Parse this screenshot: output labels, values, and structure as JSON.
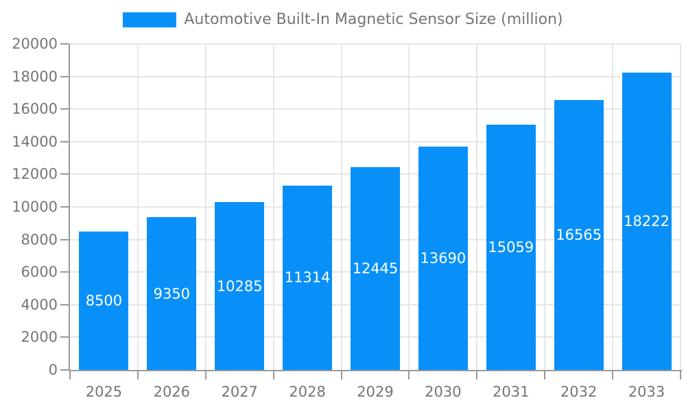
{
  "chart_data": {
    "type": "bar",
    "title": "Automotive Built-In Magnetic Sensor Size (million)",
    "categories": [
      "2025",
      "2026",
      "2027",
      "2028",
      "2029",
      "2030",
      "2031",
      "2032",
      "2033"
    ],
    "values": [
      8500,
      9350,
      10285,
      11314,
      12445,
      13690,
      15059,
      16565,
      18222
    ],
    "xlabel": "",
    "ylabel": "",
    "ylim": [
      0,
      20000
    ],
    "yticks": [
      0,
      2000,
      4000,
      6000,
      8000,
      10000,
      12000,
      14000,
      16000,
      18000,
      20000
    ],
    "grid": true,
    "legend_position": "top",
    "bar_color": "#0990f8",
    "bar_label_color": "#ffffff",
    "axis_color": "#999999",
    "grid_color": "#e6e6e6",
    "text_color": "#757575"
  }
}
